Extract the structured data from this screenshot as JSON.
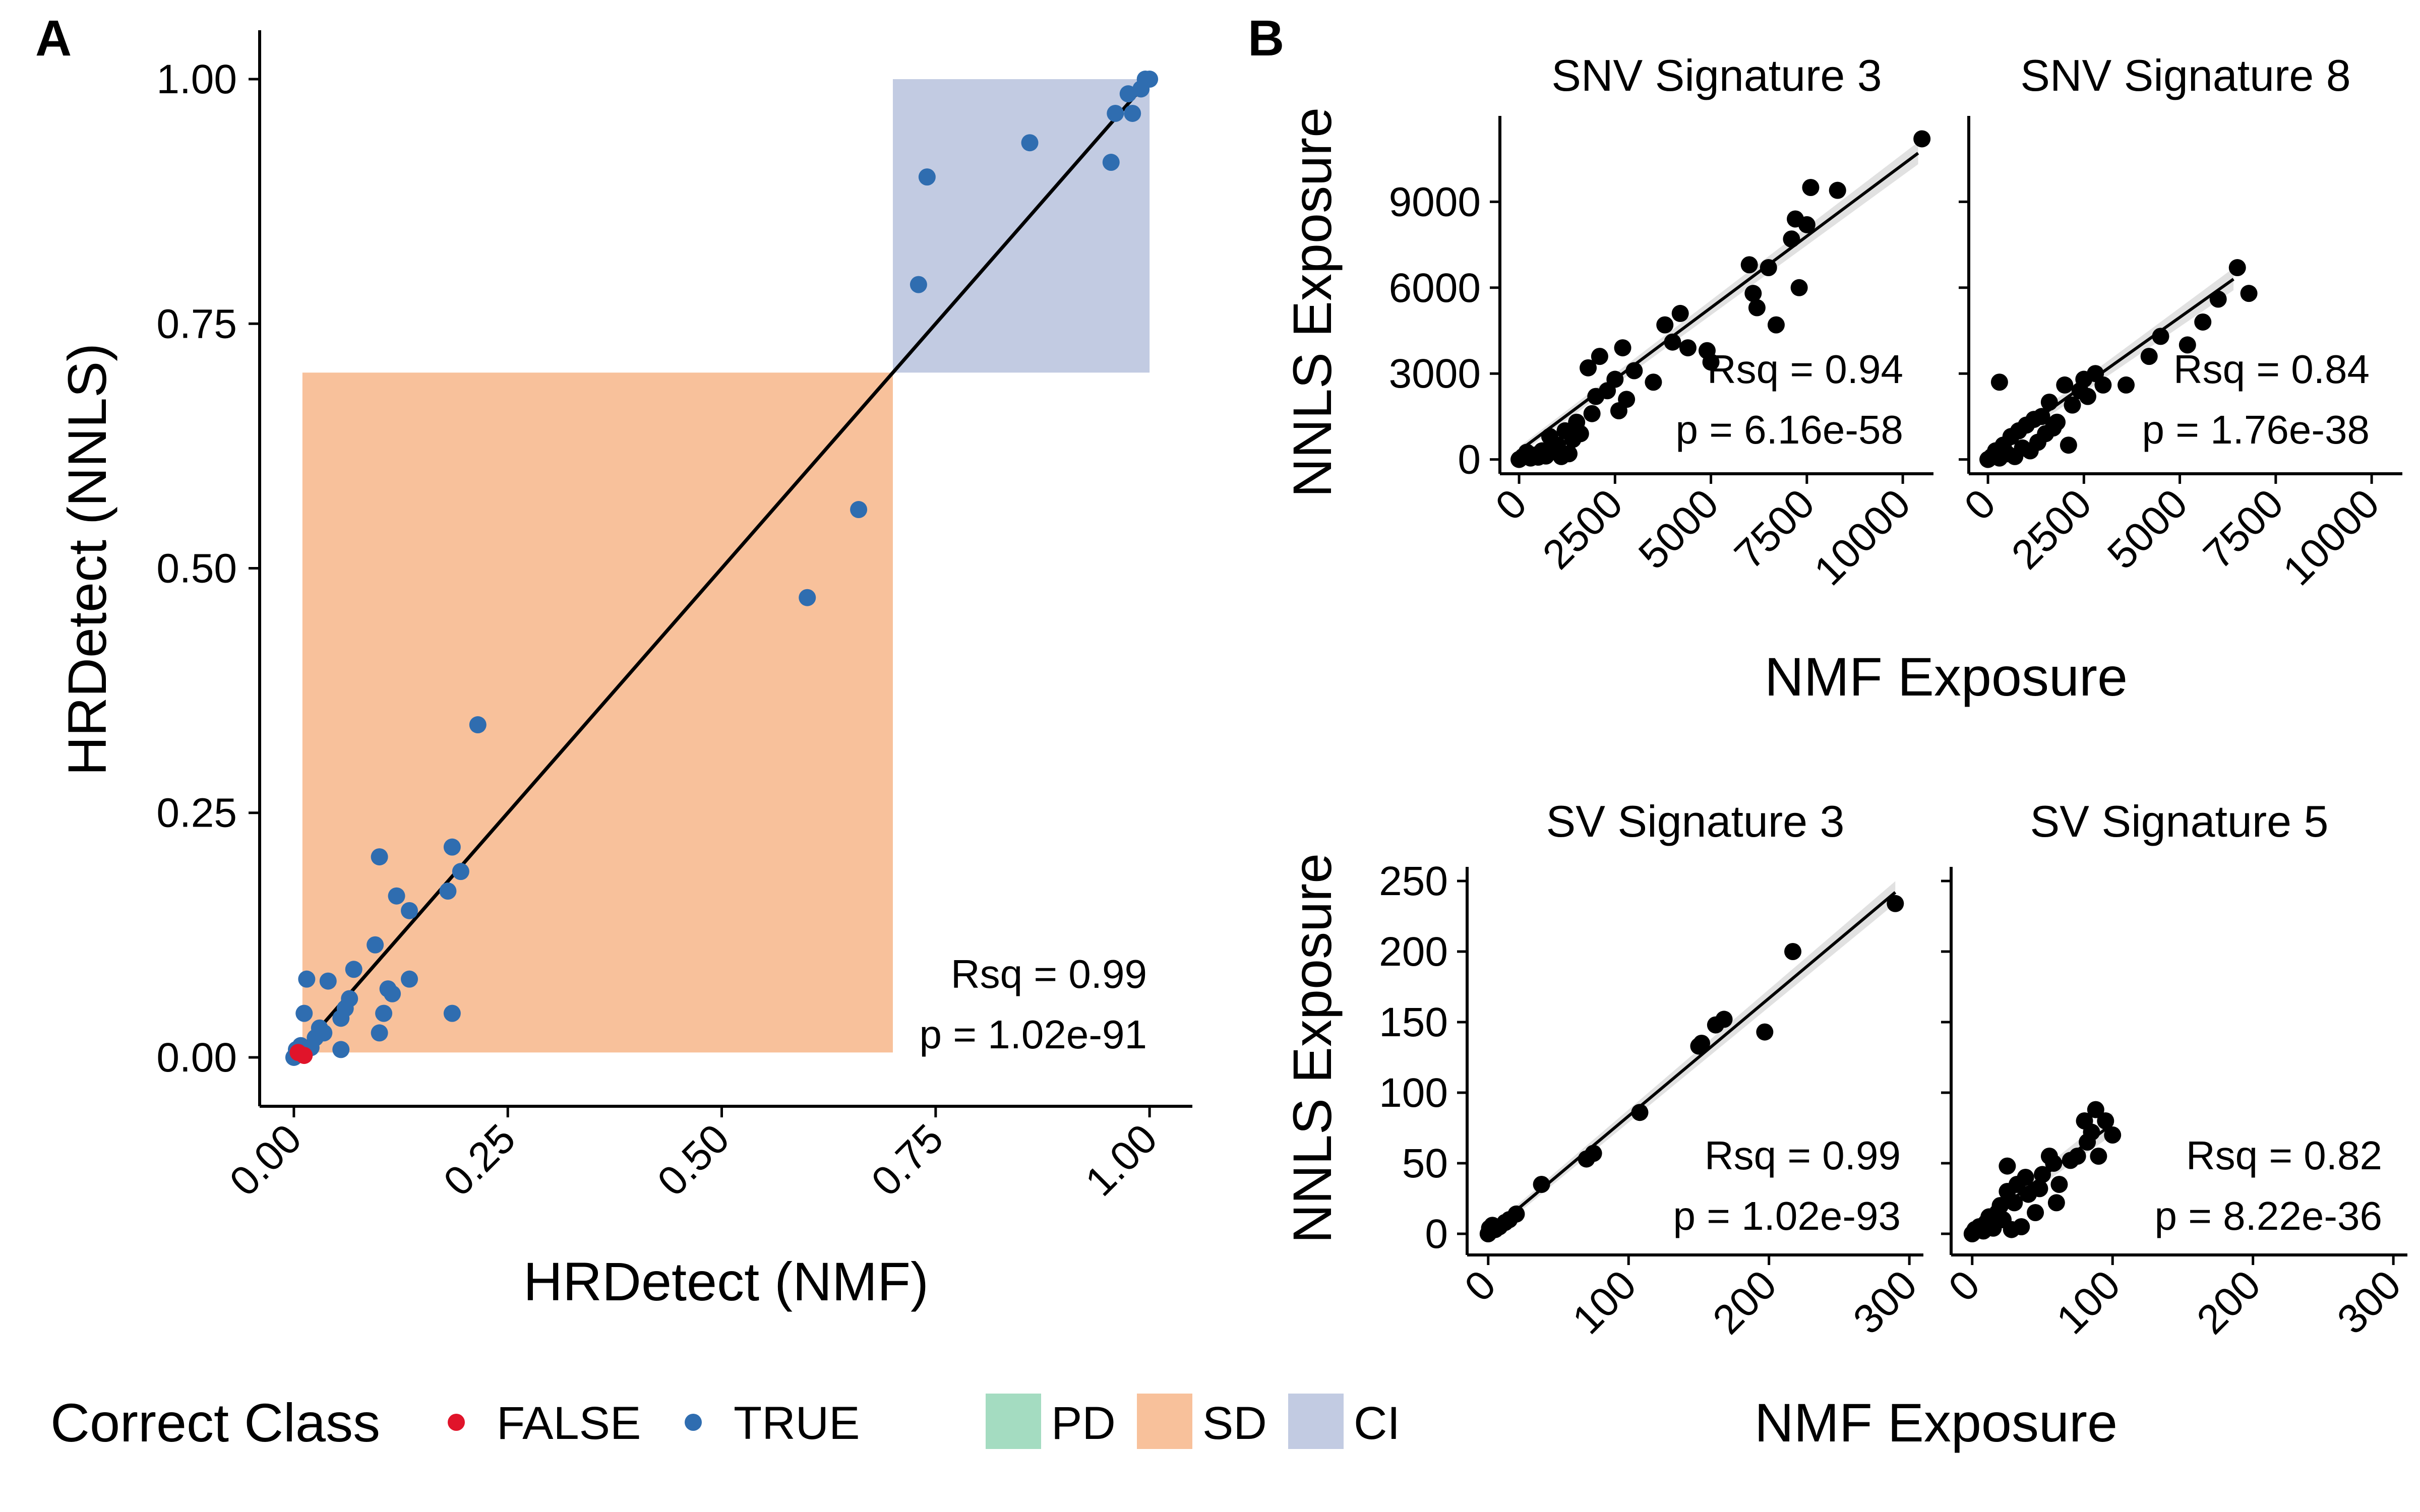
{
  "figure": {
    "panels": {
      "A": "A",
      "B": "B"
    },
    "legend": {
      "point_title": "Correct Class",
      "point_items": [
        {
          "label": "FALSE",
          "color": "#e0142a"
        },
        {
          "label": "TRUE",
          "color": "#2f6db0"
        }
      ],
      "fill_items": [
        {
          "label": "PD",
          "color": "#a4dcc1"
        },
        {
          "label": "SD",
          "color": "#f8c19b"
        },
        {
          "label": "CI",
          "color": "#c2cbe2"
        }
      ]
    }
  },
  "chart_data": [
    {
      "id": "A",
      "type": "scatter",
      "title": "",
      "xlabel": "HRDetect (NMF)",
      "ylabel": "HRDetect (NNLS)",
      "xlim": [
        -0.04,
        1.05
      ],
      "ylim": [
        -0.05,
        1.05
      ],
      "xticks": [
        0,
        0.25,
        0.5,
        0.75,
        1.0
      ],
      "xtick_labels": [
        "0.00",
        "0.25",
        "0.50",
        "0.75",
        "1.00"
      ],
      "yticks": [
        0,
        0.25,
        0.5,
        0.75,
        1.0
      ],
      "ytick_labels": [
        "0.00",
        "0.25",
        "0.50",
        "0.75",
        "1.00"
      ],
      "regions": [
        {
          "class": "SD",
          "x": [
            0.01,
            0.7
          ],
          "y": [
            0.005,
            0.7
          ],
          "color": "#f8c19b"
        },
        {
          "class": "CI",
          "x": [
            0.7,
            1.0
          ],
          "y": [
            0.7,
            1.0
          ],
          "color": "#c2cbe2"
        }
      ],
      "fit_line": [
        [
          0,
          0
        ],
        [
          1,
          1
        ]
      ],
      "grid": false,
      "annotation": {
        "rsq": "Rsq = 0.99",
        "p": "p = 1.02e-91"
      },
      "series": [
        {
          "name": "FALSE",
          "color": "#e0142a",
          "points": [
            [
              0.005,
              0.005
            ],
            [
              0.012,
              0.002
            ]
          ]
        },
        {
          "name": "TRUE",
          "color": "#2f6db0",
          "points": [
            [
              0.0,
              0.0
            ],
            [
              0.003,
              0.008
            ],
            [
              0.008,
              0.012
            ],
            [
              0.012,
              0.045
            ],
            [
              0.015,
              0.08
            ],
            [
              0.02,
              0.01
            ],
            [
              0.025,
              0.02
            ],
            [
              0.03,
              0.03
            ],
            [
              0.035,
              0.025
            ],
            [
              0.04,
              0.078
            ],
            [
              0.055,
              0.04
            ],
            [
              0.055,
              0.008
            ],
            [
              0.06,
              0.05
            ],
            [
              0.065,
              0.06
            ],
            [
              0.07,
              0.09
            ],
            [
              0.095,
              0.115
            ],
            [
              0.1,
              0.205
            ],
            [
              0.1,
              0.025
            ],
            [
              0.105,
              0.045
            ],
            [
              0.11,
              0.07
            ],
            [
              0.115,
              0.065
            ],
            [
              0.12,
              0.165
            ],
            [
              0.135,
              0.08
            ],
            [
              0.135,
              0.15
            ],
            [
              0.18,
              0.17
            ],
            [
              0.185,
              0.215
            ],
            [
              0.185,
              0.045
            ],
            [
              0.195,
              0.19
            ],
            [
              0.215,
              0.34
            ],
            [
              0.6,
              0.47
            ],
            [
              0.66,
              0.56
            ],
            [
              0.73,
              0.79
            ],
            [
              0.74,
              0.9
            ],
            [
              0.86,
              0.935
            ],
            [
              0.955,
              0.915
            ],
            [
              0.96,
              0.965
            ],
            [
              0.975,
              0.985
            ],
            [
              0.98,
              0.965
            ],
            [
              0.99,
              0.99
            ],
            [
              0.995,
              1.0
            ],
            [
              1.0,
              1.0
            ]
          ]
        }
      ]
    },
    {
      "id": "B-snv3",
      "type": "scatter",
      "title": "SNV Signature 3",
      "xlabel": "NMF Exposure",
      "ylabel": "NNLS Exposure",
      "xlim": [
        -500,
        10800
      ],
      "ylim": [
        -500,
        12000
      ],
      "xticks": [
        0,
        2500,
        5000,
        7500,
        10000
      ],
      "xtick_labels": [
        "0",
        "2500",
        "5000",
        "7500",
        "10000"
      ],
      "yticks": [
        0,
        3000,
        6000,
        9000
      ],
      "ytick_labels": [
        "0",
        "3000",
        "6000",
        "9000"
      ],
      "fit_line": [
        [
          0,
          300
        ],
        [
          10400,
          10700
        ]
      ],
      "annotation": {
        "rsq": "Rsq = 0.94",
        "p": "p = 6.16e-58"
      },
      "series": [
        {
          "name": "",
          "color": "#000000",
          "points": [
            [
              0,
              0
            ],
            [
              100,
              100
            ],
            [
              200,
              250
            ],
            [
              300,
              50
            ],
            [
              400,
              150
            ],
            [
              500,
              80
            ],
            [
              600,
              300
            ],
            [
              700,
              120
            ],
            [
              800,
              800
            ],
            [
              900,
              300
            ],
            [
              1000,
              500
            ],
            [
              1100,
              100
            ],
            [
              1200,
              1000
            ],
            [
              1300,
              200
            ],
            [
              1400,
              700
            ],
            [
              1500,
              1300
            ],
            [
              1600,
              900
            ],
            [
              1800,
              3200
            ],
            [
              1900,
              1600
            ],
            [
              2000,
              2200
            ],
            [
              2100,
              3600
            ],
            [
              2300,
              2400
            ],
            [
              2500,
              2800
            ],
            [
              2600,
              1700
            ],
            [
              2700,
              3900
            ],
            [
              2800,
              2100
            ],
            [
              3000,
              3100
            ],
            [
              3500,
              2700
            ],
            [
              3800,
              4700
            ],
            [
              4000,
              4100
            ],
            [
              4200,
              5100
            ],
            [
              4400,
              3900
            ],
            [
              4900,
              3800
            ],
            [
              5000,
              3400
            ],
            [
              6000,
              6800
            ],
            [
              6100,
              5800
            ],
            [
              6200,
              5300
            ],
            [
              6500,
              6700
            ],
            [
              6700,
              4700
            ],
            [
              7100,
              7700
            ],
            [
              7200,
              8400
            ],
            [
              7300,
              6000
            ],
            [
              7500,
              8200
            ],
            [
              7600,
              9500
            ],
            [
              8300,
              9400
            ],
            [
              10500,
              11200
            ]
          ]
        }
      ]
    },
    {
      "id": "B-snv8",
      "type": "scatter",
      "title": "SNV Signature 8",
      "xlabel": "NMF Exposure",
      "ylabel": "NNLS Exposure",
      "xlim": [
        -500,
        10800
      ],
      "ylim": [
        -500,
        12000
      ],
      "xticks": [
        0,
        2500,
        5000,
        7500,
        10000
      ],
      "xtick_labels": [
        "0",
        "2500",
        "5000",
        "7500",
        "10000"
      ],
      "yticks": [
        0,
        3000,
        6000,
        9000
      ],
      "ytick_labels": [
        "0",
        "3000",
        "6000",
        "9000"
      ],
      "fit_line": [
        [
          0,
          200
        ],
        [
          6400,
          6300
        ]
      ],
      "annotation": {
        "rsq": "Rsq = 0.84",
        "p": "p = 1.76e-38"
      },
      "series": [
        {
          "name": "",
          "color": "#000000",
          "points": [
            [
              0,
              0
            ],
            [
              100,
              100
            ],
            [
              200,
              300
            ],
            [
              300,
              50
            ],
            [
              400,
              500
            ],
            [
              500,
              200
            ],
            [
              600,
              800
            ],
            [
              700,
              100
            ],
            [
              800,
              1000
            ],
            [
              900,
              400
            ],
            [
              1000,
              1200
            ],
            [
              1100,
              300
            ],
            [
              1200,
              1400
            ],
            [
              1300,
              600
            ],
            [
              1400,
              1500
            ],
            [
              1500,
              900
            ],
            [
              1600,
              2000
            ],
            [
              1700,
              1100
            ],
            [
              1800,
              1300
            ],
            [
              2000,
              2600
            ],
            [
              2100,
              500
            ],
            [
              2200,
              1900
            ],
            [
              2400,
              2400
            ],
            [
              2500,
              2800
            ],
            [
              2600,
              2200
            ],
            [
              2800,
              3000
            ],
            [
              3000,
              2600
            ],
            [
              3600,
              2600
            ],
            [
              4200,
              3600
            ],
            [
              4500,
              4300
            ],
            [
              5200,
              4000
            ],
            [
              5600,
              4800
            ],
            [
              6000,
              5600
            ],
            [
              6500,
              6700
            ],
            [
              6800,
              5800
            ],
            [
              300,
              2700
            ]
          ]
        }
      ]
    },
    {
      "id": "B-sv3",
      "type": "scatter",
      "title": "SV Signature 3",
      "xlabel": "NMF Exposure",
      "ylabel": "NNLS Exposure",
      "xlim": [
        -15,
        310
      ],
      "ylim": [
        -15,
        260
      ],
      "xticks": [
        0,
        100,
        200,
        300
      ],
      "xtick_labels": [
        "0",
        "100",
        "200",
        "300"
      ],
      "yticks": [
        0,
        50,
        100,
        150,
        200,
        250
      ],
      "ytick_labels": [
        "0",
        "50",
        "100",
        "150",
        "200",
        "250"
      ],
      "fit_line": [
        [
          0,
          0
        ],
        [
          290,
          242
        ]
      ],
      "annotation": {
        "rsq": "Rsq = 0.99",
        "p": "p = 1.02e-93"
      },
      "series": [
        {
          "name": "",
          "color": "#000000",
          "points": [
            [
              0,
              0
            ],
            [
              1,
              4
            ],
            [
              2,
              2
            ],
            [
              3,
              6
            ],
            [
              5,
              3
            ],
            [
              8,
              5
            ],
            [
              12,
              8
            ],
            [
              15,
              10
            ],
            [
              20,
              14
            ],
            [
              38,
              35
            ],
            [
              70,
              53
            ],
            [
              75,
              57
            ],
            [
              108,
              86
            ],
            [
              150,
              133
            ],
            [
              152,
              135
            ],
            [
              162,
              148
            ],
            [
              168,
              152
            ],
            [
              197,
              143
            ],
            [
              217,
              200
            ],
            [
              290,
              234
            ]
          ]
        }
      ]
    },
    {
      "id": "B-sv5",
      "type": "scatter",
      "title": "SV Signature 5",
      "xlabel": "NMF Exposure",
      "ylabel": "NNLS Exposure",
      "xlim": [
        -15,
        310
      ],
      "ylim": [
        -15,
        260
      ],
      "xticks": [
        0,
        100,
        200,
        300
      ],
      "xtick_labels": [
        "0",
        "100",
        "200",
        "300"
      ],
      "yticks": [
        0,
        50,
        100,
        150,
        200,
        250
      ],
      "ytick_labels": [
        "0",
        "50",
        "100",
        "150",
        "200",
        "250"
      ],
      "fit_line": [
        [
          0,
          3
        ],
        [
          100,
          78
        ]
      ],
      "annotation": {
        "rsq": "Rsq = 0.82",
        "p": "p = 8.22e-36"
      },
      "series": [
        {
          "name": "",
          "color": "#000000",
          "points": [
            [
              0,
              0
            ],
            [
              2,
              3
            ],
            [
              5,
              5
            ],
            [
              8,
              2
            ],
            [
              10,
              8
            ],
            [
              12,
              12
            ],
            [
              15,
              4
            ],
            [
              18,
              15
            ],
            [
              20,
              20
            ],
            [
              22,
              10
            ],
            [
              25,
              30
            ],
            [
              28,
              3
            ],
            [
              30,
              22
            ],
            [
              32,
              35
            ],
            [
              35,
              5
            ],
            [
              38,
              40
            ],
            [
              40,
              28
            ],
            [
              45,
              15
            ],
            [
              48,
              32
            ],
            [
              50,
              42
            ],
            [
              55,
              55
            ],
            [
              58,
              50
            ],
            [
              60,
              22
            ],
            [
              62,
              35
            ],
            [
              70,
              52
            ],
            [
              75,
              55
            ],
            [
              80,
              80
            ],
            [
              82,
              65
            ],
            [
              85,
              72
            ],
            [
              88,
              88
            ],
            [
              90,
              55
            ],
            [
              95,
              80
            ],
            [
              100,
              70
            ],
            [
              25,
              48
            ]
          ]
        }
      ]
    }
  ]
}
